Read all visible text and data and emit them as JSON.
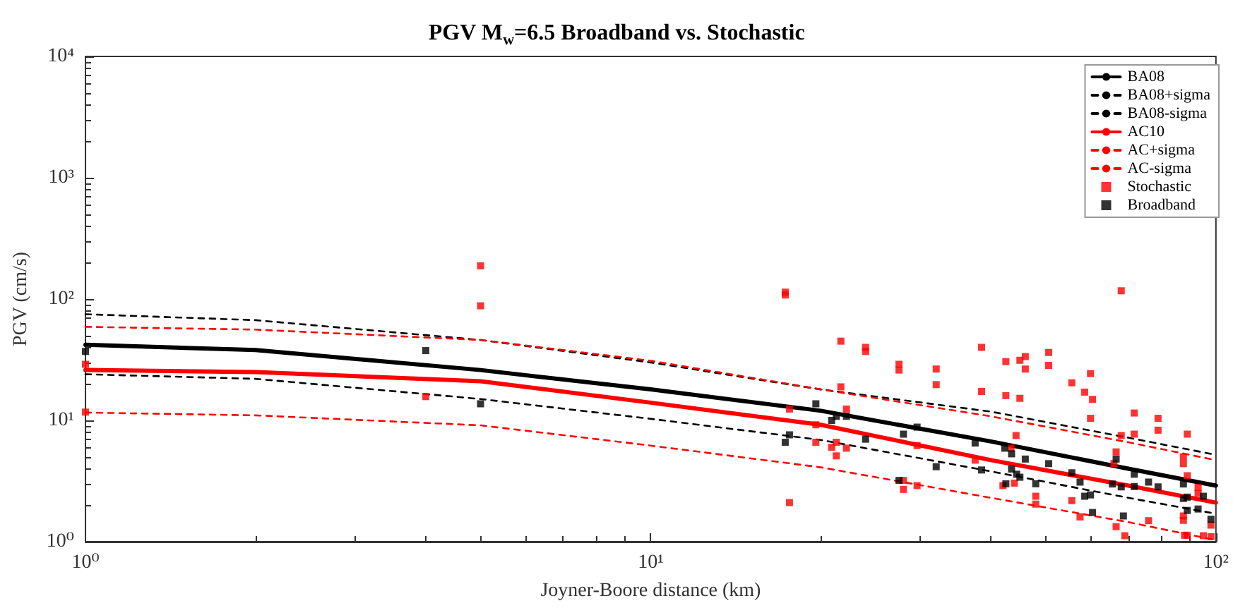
{
  "chart_data": {
    "type": "line",
    "title": "PGV M$_{w}$=6.5 Broadband vs. Stochastic",
    "xlabel": "Joyner-Boore distance (km)",
    "ylabel": "PGV (cm/s)",
    "log": "xy",
    "grid": false,
    "legend": "top right",
    "xlim": [
      1,
      100
    ],
    "ylim": [
      1,
      10000
    ],
    "xticks": [
      {
        "value": 1,
        "label": "10⁰"
      },
      {
        "value": 10,
        "label": "10¹"
      },
      {
        "value": 100,
        "label": "10²"
      }
    ],
    "yticks": [
      {
        "value": 1,
        "label": "10⁰"
      },
      {
        "value": 10,
        "label": "10¹"
      },
      {
        "value": 100,
        "label": "10²"
      },
      {
        "value": 1000,
        "label": "10³"
      },
      {
        "value": 10000,
        "label": "10⁴"
      }
    ],
    "series": [
      {
        "name": "BA08",
        "color": "#000000",
        "line_style": "solid",
        "marker": "none",
        "x": [
          1,
          2,
          5,
          10,
          20,
          40,
          70,
          100
        ],
        "values": [
          42,
          38,
          26,
          18,
          12,
          6.7,
          4.0,
          2.9
        ]
      },
      {
        "name": "BA08+sigma",
        "color": "#000000",
        "line_style": "dashed",
        "marker": "none",
        "x": [
          1,
          2,
          5,
          10,
          20,
          40,
          70,
          100
        ],
        "values": [
          75,
          67,
          46,
          30,
          18,
          11.8,
          7.2,
          5.2
        ]
      },
      {
        "name": "BA08-sigma",
        "color": "#000000",
        "line_style": "dashed",
        "marker": "none",
        "x": [
          1,
          2,
          5,
          10,
          20,
          40,
          70,
          100
        ],
        "values": [
          24,
          22,
          15,
          10.3,
          6.9,
          3.8,
          2.3,
          1.7
        ]
      },
      {
        "name": "AC10",
        "color": "#ff0000",
        "line_style": "solid",
        "marker": "none",
        "x": [
          1,
          2,
          5,
          10,
          20,
          40,
          70,
          100
        ],
        "values": [
          26,
          25,
          21,
          14,
          9.2,
          4.7,
          2.9,
          2.1
        ]
      },
      {
        "name": "AC+sigma",
        "color": "#ff0000",
        "line_style": "dashed",
        "marker": "none",
        "x": [
          1,
          2,
          5,
          10,
          20,
          40,
          70,
          100
        ],
        "values": [
          59,
          56,
          46,
          31,
          18,
          10.8,
          6.6,
          4.7
        ]
      },
      {
        "name": "AC-sigma",
        "color": "#ff0000",
        "line_style": "dashed",
        "marker": "none",
        "x": [
          1,
          2,
          5,
          10,
          20,
          40,
          70,
          100
        ],
        "values": [
          11.6,
          11,
          9.1,
          6.2,
          4.1,
          2.3,
          1.45,
          1.03
        ]
      },
      {
        "name": "Stochastic",
        "type": "scatter",
        "color": "#ff0000",
        "marker": "square",
        "x": [
          1,
          1,
          4,
          5,
          5,
          17.3,
          17.3,
          17.6,
          17.6,
          19.6,
          19.6,
          21.7,
          21.7,
          22.2,
          20.9,
          21.3,
          21.3,
          22.2,
          24,
          24,
          27.5,
          27.5,
          28,
          28,
          29.6,
          29.6,
          32,
          32,
          37.5,
          38.5,
          38.5,
          42.5,
          42.5,
          45,
          46,
          46,
          45,
          50.6,
          50.6,
          44.3,
          43.4,
          42,
          44,
          48,
          48,
          55.6,
          55.6,
          58.6,
          60,
          60.5,
          60,
          57.5,
          68,
          66.6,
          66,
          66.6,
          69,
          68,
          71.7,
          71.7,
          79,
          79,
          76,
          87.6,
          87.6,
          89,
          89,
          87.6,
          87.6,
          88,
          89,
          93,
          93,
          95,
          98,
          98
        ],
        "values": [
          29,
          11.7,
          15.7,
          188,
          88,
          114,
          108,
          12.4,
          2.1,
          9.2,
          6.6,
          45,
          18.9,
          12.4,
          6,
          6.6,
          5.1,
          5.9,
          40,
          37,
          29,
          26,
          3.2,
          2.7,
          6.2,
          2.9,
          26.5,
          19.7,
          4.7,
          40,
          17.3,
          30.5,
          16,
          31.3,
          33.6,
          26.5,
          15.2,
          36.3,
          28.4,
          7.5,
          5.9,
          2.9,
          3.04,
          2.37,
          2.04,
          20.4,
          2.18,
          17.1,
          24.3,
          14.9,
          10.4,
          1.6,
          117,
          5.5,
          4.4,
          1.33,
          1.12,
          7.5,
          11.5,
          7.7,
          10.4,
          8.3,
          1.49,
          4.4,
          5,
          7.7,
          3.5,
          1.63,
          1.5,
          1.13,
          1.13,
          2.8,
          2.5,
          1.12,
          1.37,
          1.1
        ]
      },
      {
        "name": "Broadband",
        "type": "scatter",
        "color": "#000000",
        "marker": "square",
        "x": [
          1,
          4,
          5,
          17.3,
          17.6,
          19.6,
          20.9,
          21.3,
          22.2,
          24,
          27.5,
          28,
          29.6,
          32,
          37.5,
          38.5,
          42.3,
          43.5,
          43.5,
          44.4,
          45,
          42.5,
          46,
          48,
          50.6,
          55.6,
          57.5,
          58.6,
          60,
          60.5,
          65.6,
          66.6,
          68,
          71.7,
          71.7,
          68.6,
          76,
          79,
          87.6,
          87.6,
          89,
          89,
          93,
          95,
          98
        ],
        "values": [
          37,
          37.6,
          13.7,
          6.6,
          7.6,
          13.7,
          10,
          10.8,
          10.8,
          7,
          3.2,
          7.7,
          8.8,
          4.15,
          6.5,
          3.9,
          5.9,
          5.3,
          3.97,
          3.6,
          3.4,
          3,
          4.8,
          3,
          4.4,
          3.7,
          3.1,
          2.37,
          2.43,
          1.74,
          2.99,
          4.8,
          2.83,
          3.6,
          2.85,
          1.63,
          3.1,
          2.83,
          2.99,
          2.27,
          2.33,
          1.81,
          1.86,
          2.37,
          1.53
        ]
      }
    ]
  }
}
